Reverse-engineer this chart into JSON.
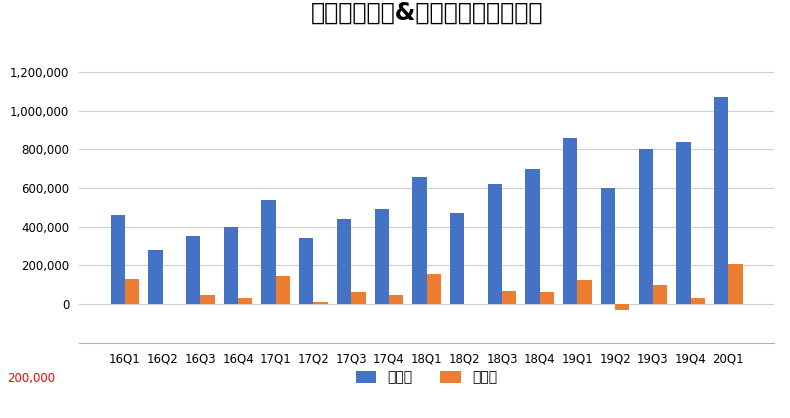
{
  "title": "新东方净收入&净利润（美元，千）",
  "categories": [
    "16Q1",
    "16Q2",
    "16Q3",
    "16Q4",
    "17Q1",
    "17Q2",
    "17Q3",
    "17Q4",
    "18Q1",
    "18Q2",
    "18Q3",
    "18Q4",
    "19Q1",
    "19Q2",
    "19Q3",
    "19Q4",
    "20Q1"
  ],
  "net_revenue": [
    460000,
    280000,
    350000,
    400000,
    540000,
    340000,
    440000,
    490000,
    660000,
    470000,
    620000,
    700000,
    860000,
    600000,
    800000,
    840000,
    1070000
  ],
  "net_profit": [
    130000,
    0,
    47000,
    32000,
    145000,
    10000,
    60000,
    48000,
    155000,
    0,
    68000,
    60000,
    125000,
    -30000,
    100000,
    32000,
    205000
  ],
  "revenue_color": "#4472C4",
  "profit_color": "#ED7D31",
  "legend_revenue": "净收入",
  "legend_profit": "净利润",
  "ylim_min": -200000,
  "ylim_max": 1400000,
  "yticks": [
    0,
    200000,
    400000,
    600000,
    800000,
    1000000,
    1200000
  ],
  "ylabel_negative": "200,000",
  "bg_color": "#FFFFFF",
  "grid_color": "#D0D0D0",
  "title_fontsize": 17,
  "tick_fontsize": 8.5,
  "legend_fontsize": 10
}
